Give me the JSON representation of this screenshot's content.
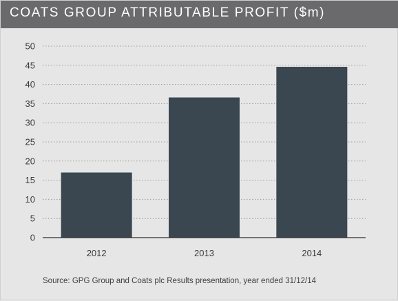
{
  "title": "COATS GROUP ATTRIBUTABLE PROFIT ($m)",
  "source": "Source: GPG Group and Coats plc Results presentation, year ended  31/12/14",
  "colors": {
    "bar": "#3b4750",
    "title_bar": "#6a6a6c",
    "background": "#e6e6e7",
    "grid": "#9a9a9c"
  },
  "chart_data": {
    "type": "bar",
    "title": "COATS GROUP ATTRIBUTABLE PROFIT ($m)",
    "categories": [
      "2012",
      "2013",
      "2014"
    ],
    "values": [
      17,
      36.6,
      44.6
    ],
    "yticks": [
      "0",
      "5",
      "10",
      "15",
      "20",
      "25",
      "30",
      "35",
      "40",
      "45",
      "50"
    ],
    "ylim": [
      0,
      50
    ],
    "xlabel": "",
    "ylabel": "",
    "grid": true,
    "legend": "none"
  }
}
